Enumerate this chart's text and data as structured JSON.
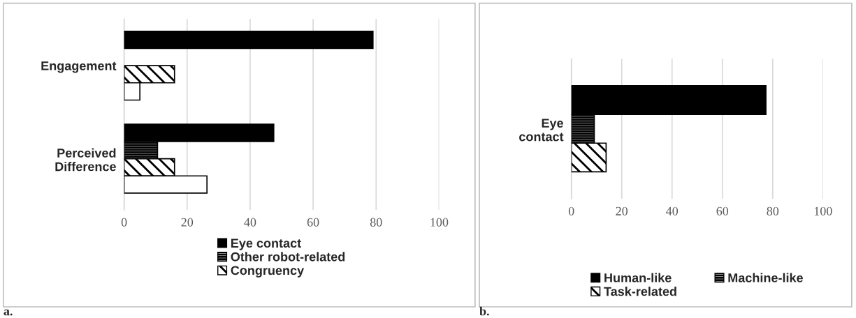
{
  "chart_data": [
    {
      "type": "bar",
      "orientation": "horizontal",
      "categories": [
        "Engagement",
        "Perceived\nDifference"
      ],
      "series": [
        {
          "name": "Eye contact",
          "color": "#000000",
          "values": [
            79,
            47.5
          ]
        },
        {
          "name": "Other robot-related",
          "color": "#000000",
          "values": [
            null,
            10.6
          ]
        },
        {
          "name": "Congruency",
          "color": "#000000",
          "values": [
            16,
            16
          ]
        },
        {
          "color": "#ffffff",
          "values": [
            5,
            26.3
          ]
        }
      ],
      "xlim": [
        0,
        100
      ],
      "xticks": [
        0,
        20,
        40,
        60,
        80,
        100
      ],
      "grid": "x",
      "legend": "bottom",
      "annotations": [
        "a."
      ]
    },
    {
      "type": "bar",
      "orientation": "horizontal",
      "categories": [
        "Eye\ncontact"
      ],
      "series": [
        {
          "name": "Human-like",
          "color": "#000000",
          "values": [
            77.3
          ]
        },
        {
          "name": "Machine-like",
          "color": "#000000",
          "values": [
            9.1
          ]
        },
        {
          "name": "Task-related",
          "color": "#000000",
          "values": [
            13.8
          ]
        }
      ],
      "xlim": [
        0,
        100
      ],
      "xticks": [
        0,
        20,
        40,
        60,
        80,
        100
      ],
      "grid": "x",
      "legend": "bottom",
      "annotations": [
        "b."
      ]
    }
  ]
}
